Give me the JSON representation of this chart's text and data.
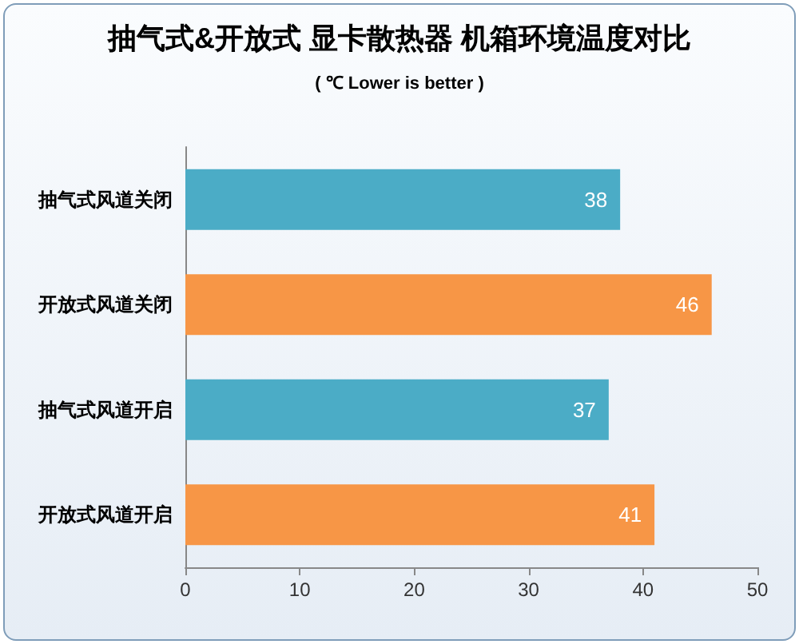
{
  "chart_data": {
    "type": "bar",
    "orientation": "horizontal",
    "title": "抽气式&开放式 显卡散热器 机箱环境温度对比",
    "subtitle": "( ℃ Lower is better )",
    "categories": [
      "抽气式风道关闭",
      "开放式风道关闭",
      "抽气式风道开启",
      "开放式风道开启"
    ],
    "values": [
      38,
      46,
      37,
      41
    ],
    "colors": [
      "#4bacc6",
      "#f79646",
      "#4bacc6",
      "#f79646"
    ],
    "xlim": [
      0,
      50
    ],
    "xticks": [
      0,
      10,
      20,
      30,
      40,
      50
    ],
    "grid": false,
    "data_labels": true
  }
}
